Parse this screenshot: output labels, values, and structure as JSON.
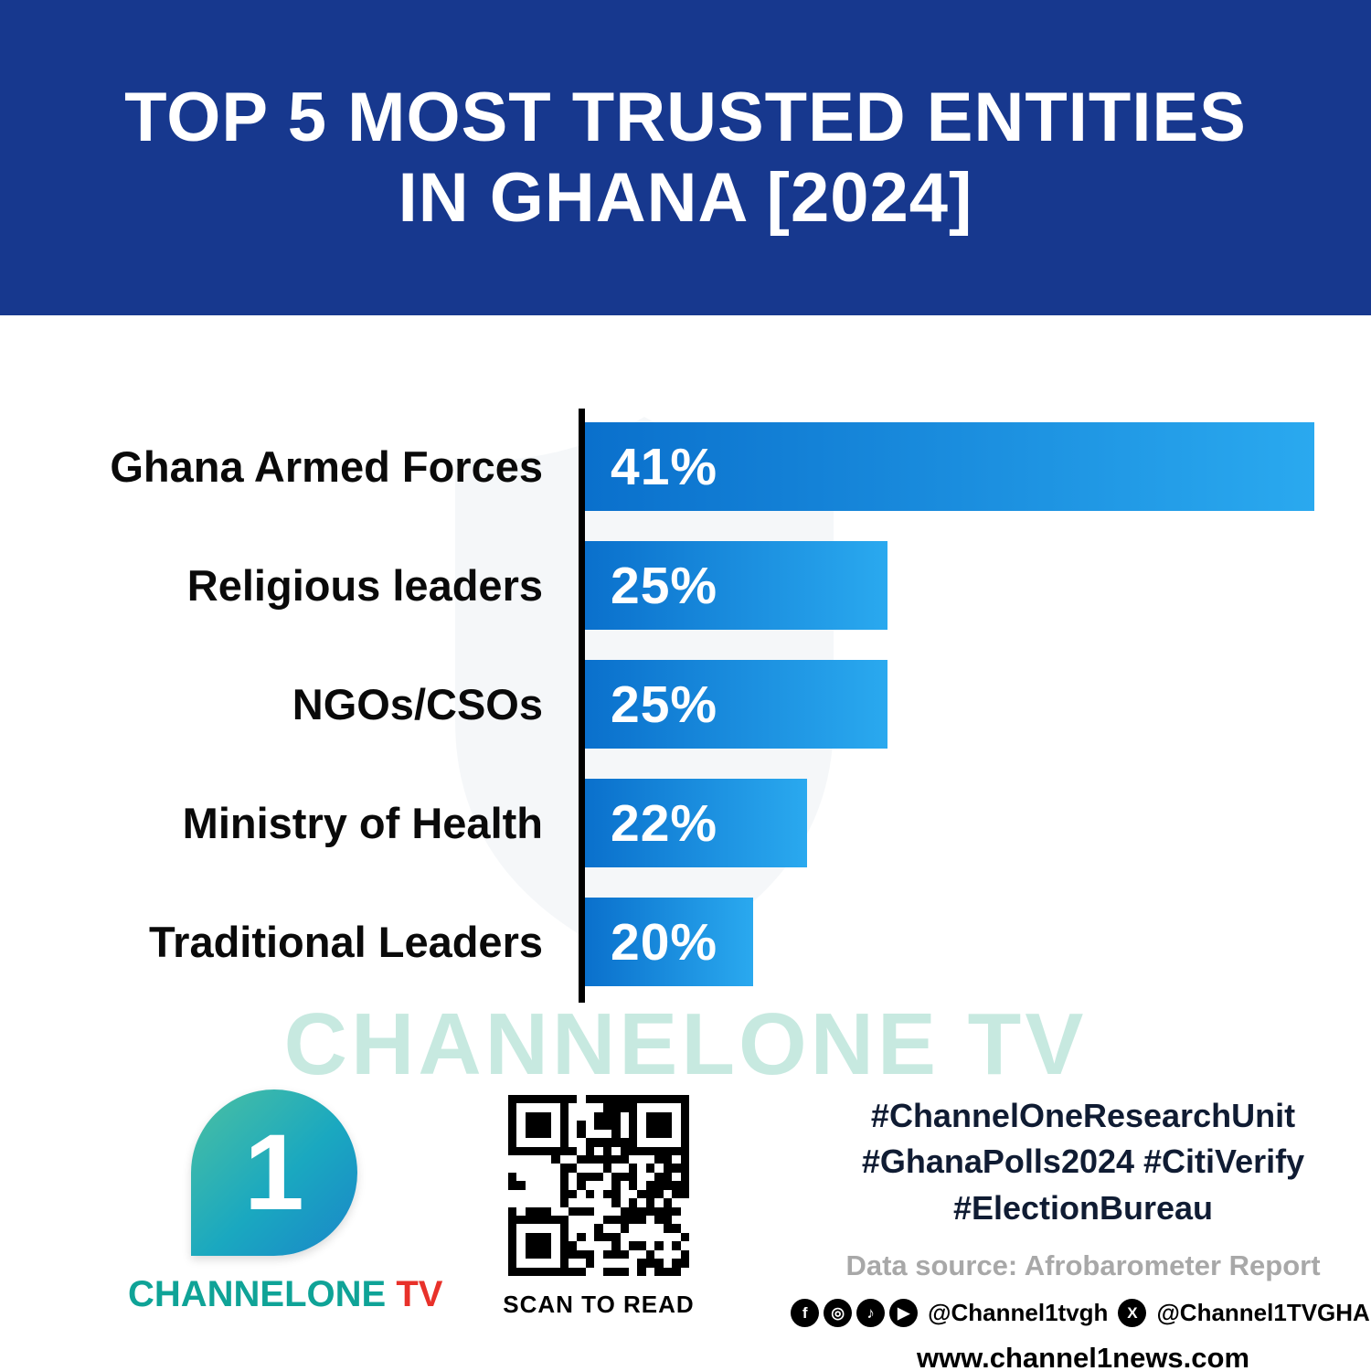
{
  "colors": {
    "header_bg": "#17388e",
    "bar_gradient_start": "#0a70cc",
    "bar_gradient_end": "#2aa9ef",
    "axis": "#000000",
    "brand_teal": "#0fa397",
    "brand_red": "#e8312a",
    "watermark_teal": "#b5e2d6",
    "hashtag_navy": "#101c33",
    "source_gray": "#a8a8a8"
  },
  "header": {
    "title_line1": "TOP 5 MOST TRUSTED ENTITIES",
    "title_line2": "IN GHANA [2024]"
  },
  "chart_data": {
    "type": "bar",
    "orientation": "horizontal",
    "title": "TOP 5 MOST TRUSTED ENTITIES IN GHANA [2024]",
    "xlabel": "",
    "ylabel": "",
    "xlim": [
      0,
      41
    ],
    "grid": false,
    "legend": false,
    "categories": [
      "Ghana Armed Forces",
      "Religious leaders",
      "NGOs/CSOs",
      "Ministry of Health",
      "Traditional Leaders"
    ],
    "values": [
      41,
      25,
      25,
      22,
      20
    ],
    "bars": [
      {
        "label": "Ghana Armed Forces",
        "value": 41,
        "value_label": "41%",
        "width_pct": 100
      },
      {
        "label": "Religious leaders",
        "value": 25,
        "value_label": "25%",
        "width_pct": 41.5
      },
      {
        "label": "NGOs/CSOs",
        "value": 25,
        "value_label": "25%",
        "width_pct": 41.5
      },
      {
        "label": "Ministry of Health",
        "value": 22,
        "value_label": "22%",
        "width_pct": 30.5
      },
      {
        "label": "Traditional Leaders",
        "value": 20,
        "value_label": "20%",
        "width_pct": 23
      }
    ]
  },
  "watermark": {
    "text": "CHANNELONE TV"
  },
  "footer": {
    "logo": {
      "numeral": "1",
      "brand_main": "CHANNELONE",
      "brand_tv": " TV"
    },
    "qr": {
      "caption": "SCAN TO READ"
    },
    "hashtags": {
      "line1": "#ChannelOneResearchUnit",
      "line2": "#GhanaPolls2024 #CitiVerify",
      "line3": "#ElectionBureau"
    },
    "data_source": "Data source: Afrobarometer Report",
    "social": {
      "icons": [
        {
          "name": "facebook-icon",
          "glyph": "f"
        },
        {
          "name": "instagram-icon",
          "glyph": "◎"
        },
        {
          "name": "tiktok-icon",
          "glyph": "♪"
        },
        {
          "name": "youtube-icon",
          "glyph": "▶"
        }
      ],
      "handle_main": "@Channel1tvgh",
      "x_icon_glyph": "X",
      "handle_x": "@Channel1TVGHA"
    },
    "website": "www.channel1news.com"
  }
}
